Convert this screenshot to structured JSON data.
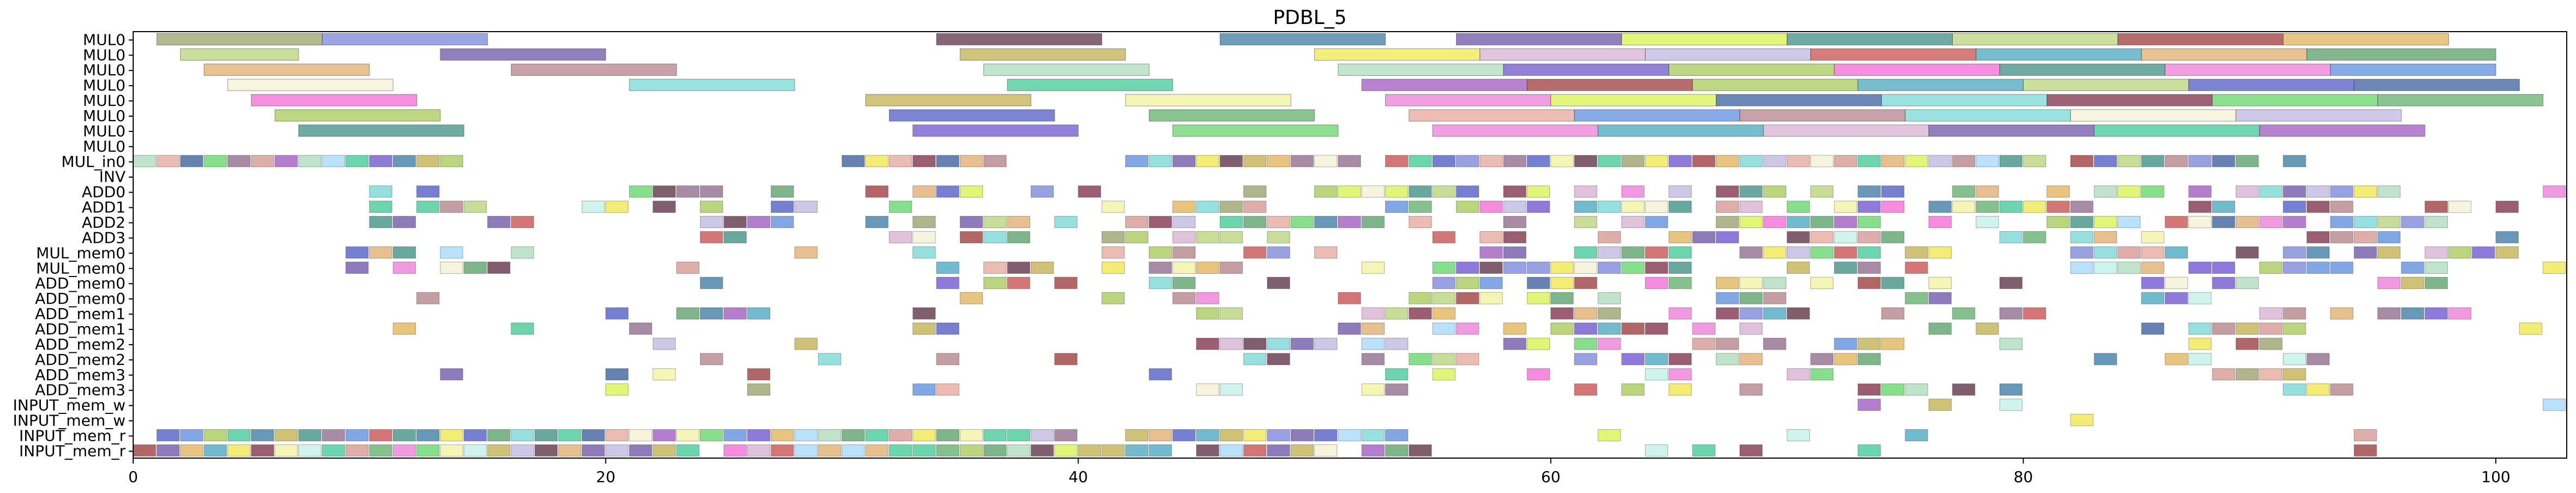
{
  "chart_data": {
    "type": "gantt",
    "title": "PDBL_5",
    "xlabel": "",
    "ylabel": "",
    "xlim": [
      0,
      103
    ],
    "x_ticks": [
      0,
      20,
      40,
      60,
      80,
      100
    ],
    "grid": false,
    "rows": [
      "MUL0",
      "MUL0",
      "MUL0",
      "MUL0",
      "MUL0",
      "MUL0",
      "MUL0",
      "MUL0",
      "MUL_in0",
      "INV",
      "ADD0",
      "ADD1",
      "ADD2",
      "ADD3",
      "MUL_mem0",
      "MUL_mem0",
      "ADD_mem0",
      "ADD_mem0",
      "ADD_mem1",
      "ADD_mem1",
      "ADD_mem2",
      "ADD_mem2",
      "ADD_mem3",
      "ADD_mem3",
      "INPUT_mem_w",
      "INPUT_mem_w",
      "INPUT_mem_r",
      "INPUT_mem_r"
    ],
    "palette": [
      "#9aa06a",
      "#7b86d8",
      "#5e3145",
      "#3d7ba3",
      "#6e56a8",
      "#d9f34f",
      "#3f8f83",
      "#b9d37a",
      "#9d3b3b",
      "#e1b35a",
      "#c2b04f",
      "#f0e84f",
      "#d7b1d4",
      "#bfb8e2",
      "#c94f4f",
      "#4aa7c0",
      "#e1ad6f",
      "#aedcbd",
      "#6d55cf",
      "#a7c95a",
      "#f46ad6",
      "#8f6a8c",
      "#79d9d6",
      "#d69792",
      "#f2f2a0",
      "#5aa06a",
      "#7d2f49",
      "#4f5cc6",
      "#41c996",
      "#ed7dd8",
      "#e7a89b",
      "#5d8fdd",
      "#c2f0e8",
      "#9f59c0",
      "#66d66a",
      "#f3f1d2",
      "#3a5f9e",
      "#b5838b",
      "#63b06b",
      "#a6d8ff"
    ],
    "tasks": [
      {
        "row": 0,
        "start": 1,
        "end": 8,
        "c": 0
      },
      {
        "row": 0,
        "start": 8,
        "end": 15,
        "c": 1
      },
      {
        "row": 0,
        "start": 34,
        "end": 41,
        "c": 2
      },
      {
        "row": 0,
        "start": 46,
        "end": 53,
        "c": 3
      },
      {
        "row": 0,
        "start": 56,
        "end": 63,
        "c": 4
      },
      {
        "row": 0,
        "start": 63,
        "end": 70,
        "c": 5
      },
      {
        "row": 0,
        "start": 70,
        "end": 77,
        "c": 6
      },
      {
        "row": 0,
        "start": 77,
        "end": 84,
        "c": 7
      },
      {
        "row": 0,
        "start": 84,
        "end": 91,
        "c": 8
      },
      {
        "row": 0,
        "start": 91,
        "end": 98,
        "c": 9
      },
      {
        "row": 1,
        "start": 2,
        "end": 7,
        "c": 7
      },
      {
        "row": 1,
        "start": 13,
        "end": 20,
        "c": 4
      },
      {
        "row": 1,
        "start": 35,
        "end": 42,
        "c": 10
      },
      {
        "row": 1,
        "start": 50,
        "end": 57,
        "c": 11
      },
      {
        "row": 1,
        "start": 57,
        "end": 64,
        "c": 12
      },
      {
        "row": 1,
        "start": 64,
        "end": 71,
        "c": 13
      },
      {
        "row": 1,
        "start": 71,
        "end": 78,
        "c": 14
      },
      {
        "row": 1,
        "start": 78,
        "end": 85,
        "c": 15
      },
      {
        "row": 1,
        "start": 85,
        "end": 92,
        "c": 16
      },
      {
        "row": 1,
        "start": 92,
        "end": 100,
        "c": 25
      },
      {
        "row": 2,
        "start": 3,
        "end": 10,
        "c": 16
      },
      {
        "row": 2,
        "start": 16,
        "end": 23,
        "c": 37
      },
      {
        "row": 2,
        "start": 36,
        "end": 43,
        "c": 17
      },
      {
        "row": 2,
        "start": 51,
        "end": 58,
        "c": 17
      },
      {
        "row": 2,
        "start": 58,
        "end": 65,
        "c": 18
      },
      {
        "row": 2,
        "start": 65,
        "end": 72,
        "c": 19
      },
      {
        "row": 2,
        "start": 72,
        "end": 79,
        "c": 20
      },
      {
        "row": 2,
        "start": 79,
        "end": 86,
        "c": 6
      },
      {
        "row": 2,
        "start": 86,
        "end": 93,
        "c": 29
      },
      {
        "row": 2,
        "start": 93,
        "end": 100,
        "c": 31
      },
      {
        "row": 3,
        "start": 4,
        "end": 11,
        "c": 35
      },
      {
        "row": 3,
        "start": 21,
        "end": 28,
        "c": 22
      },
      {
        "row": 3,
        "start": 37,
        "end": 44,
        "c": 28
      },
      {
        "row": 3,
        "start": 52,
        "end": 59,
        "c": 33
      },
      {
        "row": 3,
        "start": 59,
        "end": 66,
        "c": 8
      },
      {
        "row": 3,
        "start": 66,
        "end": 73,
        "c": 19
      },
      {
        "row": 3,
        "start": 73,
        "end": 80,
        "c": 15
      },
      {
        "row": 3,
        "start": 80,
        "end": 87,
        "c": 7
      },
      {
        "row": 3,
        "start": 87,
        "end": 94,
        "c": 27
      },
      {
        "row": 3,
        "start": 94,
        "end": 101,
        "c": 36
      },
      {
        "row": 4,
        "start": 5,
        "end": 12,
        "c": 20
      },
      {
        "row": 4,
        "start": 31,
        "end": 38,
        "c": 10
      },
      {
        "row": 4,
        "start": 42,
        "end": 49,
        "c": 24
      },
      {
        "row": 4,
        "start": 53,
        "end": 60,
        "c": 29
      },
      {
        "row": 4,
        "start": 60,
        "end": 67,
        "c": 5
      },
      {
        "row": 4,
        "start": 67,
        "end": 74,
        "c": 36
      },
      {
        "row": 4,
        "start": 74,
        "end": 81,
        "c": 22
      },
      {
        "row": 4,
        "start": 81,
        "end": 88,
        "c": 26
      },
      {
        "row": 4,
        "start": 88,
        "end": 95,
        "c": 34
      },
      {
        "row": 4,
        "start": 95,
        "end": 102,
        "c": 38
      },
      {
        "row": 5,
        "start": 6,
        "end": 13,
        "c": 19
      },
      {
        "row": 5,
        "start": 32,
        "end": 39,
        "c": 27
      },
      {
        "row": 5,
        "start": 43,
        "end": 50,
        "c": 38
      },
      {
        "row": 5,
        "start": 54,
        "end": 61,
        "c": 30
      },
      {
        "row": 5,
        "start": 61,
        "end": 68,
        "c": 31
      },
      {
        "row": 5,
        "start": 68,
        "end": 75,
        "c": 37
      },
      {
        "row": 5,
        "start": 75,
        "end": 82,
        "c": 22
      },
      {
        "row": 5,
        "start": 82,
        "end": 89,
        "c": 35
      },
      {
        "row": 5,
        "start": 89,
        "end": 96,
        "c": 13
      },
      {
        "row": 6,
        "start": 7,
        "end": 14,
        "c": 6
      },
      {
        "row": 6,
        "start": 33,
        "end": 40,
        "c": 18
      },
      {
        "row": 6,
        "start": 44,
        "end": 51,
        "c": 34
      },
      {
        "row": 6,
        "start": 55,
        "end": 62,
        "c": 29
      },
      {
        "row": 6,
        "start": 62,
        "end": 69,
        "c": 15
      },
      {
        "row": 6,
        "start": 69,
        "end": 76,
        "c": 12
      },
      {
        "row": 6,
        "start": 76,
        "end": 83,
        "c": 4
      },
      {
        "row": 6,
        "start": 83,
        "end": 90,
        "c": 28
      },
      {
        "row": 6,
        "start": 90,
        "end": 97,
        "c": 33
      }
    ]
  }
}
